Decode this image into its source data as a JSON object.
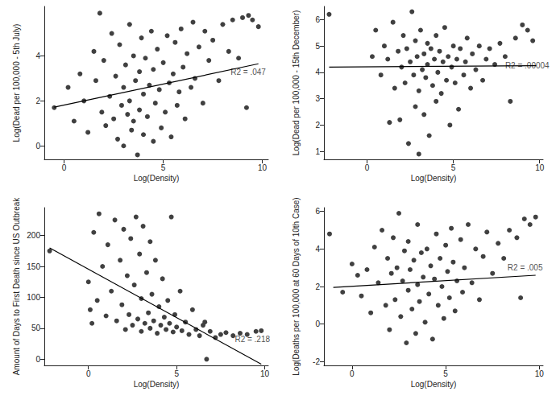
{
  "chart_data": [
    {
      "type": "scatter",
      "x_label": "Log(Density)",
      "y_label": "Log(Dead per 100,000 - 5th July)",
      "color": "#404040",
      "marker": "circle",
      "grid": false,
      "xlim": [
        -1,
        10.3
      ],
      "xticks": [
        0,
        5,
        10
      ],
      "ylim": [
        -0.6,
        6.2
      ],
      "yticks": [
        0,
        2,
        4
      ],
      "x": [
        -0.5,
        0.2,
        0.5,
        0.8,
        1.0,
        1.2,
        1.5,
        1.6,
        1.8,
        1.9,
        2.0,
        2.1,
        2.3,
        2.4,
        2.5,
        2.6,
        2.7,
        2.8,
        2.9,
        3.0,
        3.0,
        3.1,
        3.2,
        3.3,
        3.3,
        3.4,
        3.5,
        3.5,
        3.6,
        3.7,
        3.8,
        3.8,
        3.9,
        4.0,
        4.0,
        4.1,
        4.2,
        4.3,
        4.4,
        4.5,
        4.5,
        4.6,
        4.7,
        4.8,
        4.9,
        5.0,
        5.1,
        5.2,
        5.3,
        5.4,
        5.5,
        5.6,
        5.7,
        5.8,
        5.9,
        6.0,
        6.1,
        6.2,
        6.4,
        6.5,
        6.6,
        6.8,
        7.0,
        7.1,
        7.3,
        7.5,
        7.8,
        8.0,
        8.3,
        8.5,
        8.8,
        9.0,
        9.2,
        9.3,
        9.5,
        9.8
      ],
      "values": [
        1.7,
        2.6,
        1.1,
        3.2,
        2.0,
        0.6,
        4.2,
        2.9,
        5.9,
        1.5,
        3.8,
        0.9,
        2.2,
        5.0,
        1.2,
        3.1,
        0.3,
        4.5,
        1.8,
        2.6,
        0.0,
        3.6,
        1.4,
        5.4,
        2.0,
        0.7,
        4.0,
        1.1,
        2.9,
        -0.4,
        3.3,
        1.6,
        4.8,
        2.3,
        0.5,
        3.9,
        1.3,
        2.7,
        5.1,
        0.2,
        3.4,
        1.9,
        4.3,
        2.5,
        0.8,
        3.7,
        1.5,
        4.9,
        2.8,
        0.4,
        3.2,
        4.6,
        1.8,
        2.4,
        5.2,
        3.5,
        1.2,
        4.1,
        2.6,
        5.5,
        3.0,
        4.4,
        1.9,
        5.1,
        3.8,
        4.7,
        2.9,
        5.4,
        4.2,
        5.6,
        3.9,
        5.7,
        1.7,
        5.8,
        5.6,
        5.3
      ],
      "trend_line": {
        "x": [
          -0.5,
          9.8
        ],
        "values": [
          1.72,
          3.65
        ],
        "color": "#000000"
      },
      "annotations": [
        {
          "text": "R2 = .047",
          "x": 8.4,
          "y": 3.3
        }
      ]
    },
    {
      "type": "scatter",
      "x_label": "Log(Density)",
      "y_label": "Log(Dead per 100,000 - 15th December)",
      "color": "#404040",
      "marker": "circle",
      "grid": false,
      "xlim": [
        -2.5,
        10.2
      ],
      "xticks": [
        0,
        5,
        10
      ],
      "ylim": [
        0.7,
        6.5
      ],
      "yticks": [
        1,
        2,
        3,
        4,
        5,
        6
      ],
      "x": [
        -2.2,
        0.3,
        0.5,
        0.8,
        1.0,
        1.2,
        1.3,
        1.5,
        1.6,
        1.8,
        1.9,
        2.0,
        2.1,
        2.2,
        2.3,
        2.4,
        2.5,
        2.6,
        2.7,
        2.8,
        2.8,
        2.9,
        3.0,
        3.0,
        3.1,
        3.2,
        3.3,
        3.3,
        3.4,
        3.5,
        3.5,
        3.6,
        3.7,
        3.8,
        3.9,
        4.0,
        4.0,
        4.1,
        4.2,
        4.3,
        4.4,
        4.5,
        4.6,
        4.7,
        4.8,
        4.9,
        5.0,
        5.1,
        5.2,
        5.3,
        5.4,
        5.6,
        5.7,
        5.8,
        6.0,
        6.1,
        6.3,
        6.5,
        6.7,
        6.9,
        7.1,
        7.4,
        7.7,
        8.0,
        8.3,
        8.6,
        9.0,
        9.3,
        9.6
      ],
      "values": [
        6.2,
        4.6,
        5.6,
        3.9,
        5.0,
        4.5,
        2.1,
        5.9,
        3.4,
        4.8,
        2.2,
        4.2,
        5.4,
        3.6,
        4.9,
        1.3,
        4.4,
        6.3,
        3.9,
        5.2,
        2.7,
        4.6,
        3.3,
        0.9,
        5.6,
        4.1,
        4.7,
        2.4,
        3.8,
        5.1,
        4.3,
        1.6,
        4.9,
        3.5,
        4.5,
        5.4,
        2.9,
        4.0,
        4.8,
        3.2,
        4.4,
        5.7,
        3.7,
        4.6,
        2.0,
        4.2,
        5.0,
        3.6,
        4.5,
        2.6,
        4.9,
        3.9,
        4.4,
        5.3,
        3.4,
        4.7,
        4.1,
        5.0,
        3.7,
        4.5,
        4.9,
        4.3,
        5.1,
        4.6,
        2.9,
        5.3,
        5.8,
        5.6,
        5.2
      ],
      "trend_line": {
        "x": [
          -2.2,
          9.8
        ],
        "values": [
          4.2,
          4.25
        ],
        "color": "#000000"
      },
      "annotations": [
        {
          "text": "R2 = .00004",
          "x": 8.0,
          "y": 4.25
        }
      ]
    },
    {
      "type": "scatter",
      "x_label": "Log(Density)",
      "y_label": "Amount of Days to First Death since US Outbreak",
      "color": "#404040",
      "marker": "circle",
      "grid": false,
      "xlim": [
        -2.5,
        10.2
      ],
      "xticks": [
        0,
        5,
        10
      ],
      "ylim": [
        -10,
        245
      ],
      "yticks": [
        0,
        50,
        100,
        150,
        200
      ],
      "x": [
        -2.2,
        0,
        0.1,
        0.2,
        0.3,
        0.5,
        0.6,
        0.8,
        1.0,
        1.1,
        1.3,
        1.5,
        1.6,
        1.8,
        1.9,
        2.0,
        2.1,
        2.2,
        2.3,
        2.4,
        2.5,
        2.6,
        2.7,
        2.8,
        2.9,
        3.0,
        3.0,
        3.1,
        3.2,
        3.3,
        3.4,
        3.5,
        3.5,
        3.6,
        3.7,
        3.8,
        3.9,
        4.0,
        4.1,
        4.2,
        4.3,
        4.4,
        4.5,
        4.6,
        4.7,
        4.8,
        4.9,
        5.0,
        5.2,
        5.3,
        5.5,
        5.7,
        5.9,
        6.1,
        6.3,
        6.5,
        6.6,
        6.7,
        6.9,
        7.2,
        7.5,
        7.8,
        8.2,
        8.6,
        9.0,
        9.5,
        9.8
      ],
      "values": [
        175,
        125,
        80,
        58,
        205,
        95,
        235,
        150,
        70,
        185,
        110,
        225,
        62,
        160,
        88,
        210,
        48,
        135,
        72,
        195,
        55,
        120,
        230,
        65,
        170,
        45,
        98,
        215,
        58,
        140,
        75,
        190,
        50,
        105,
        62,
        160,
        42,
        85,
        55,
        130,
        68,
        48,
        95,
        58,
        230,
        44,
        72,
        52,
        110,
        46,
        60,
        40,
        80,
        48,
        38,
        55,
        60,
        0,
        45,
        35,
        40,
        43,
        38,
        42,
        40,
        45,
        46
      ],
      "trend_line": {
        "x": [
          -2.2,
          9.8
        ],
        "values": [
          180,
          -8
        ],
        "color": "#000000"
      },
      "annotations": [
        {
          "text": "R2 = .218",
          "x": 8.3,
          "y": 32
        }
      ]
    },
    {
      "type": "scatter",
      "x_label": "Log(Density)",
      "y_label": "Log(Deaths per 100,000 at 60 Days of 10th Case)",
      "color": "#404040",
      "marker": "circle",
      "grid": false,
      "xlim": [
        -1.5,
        10.2
      ],
      "xticks": [
        0,
        5,
        10
      ],
      "ylim": [
        -2.2,
        6.2
      ],
      "yticks": [
        -2,
        0,
        2,
        4,
        6
      ],
      "x": [
        -1.2,
        -0.5,
        0,
        0.3,
        0.5,
        0.8,
        1.0,
        1.2,
        1.4,
        1.6,
        1.8,
        1.9,
        2.0,
        2.1,
        2.2,
        2.3,
        2.4,
        2.5,
        2.6,
        2.7,
        2.8,
        2.9,
        3.0,
        3.0,
        3.1,
        3.2,
        3.3,
        3.4,
        3.5,
        3.5,
        3.6,
        3.7,
        3.8,
        3.9,
        4.0,
        4.1,
        4.2,
        4.3,
        4.4,
        4.5,
        4.6,
        4.7,
        4.8,
        4.9,
        5.0,
        5.1,
        5.2,
        5.3,
        5.4,
        5.5,
        5.6,
        5.8,
        5.9,
        6.0,
        6.2,
        6.4,
        6.6,
        6.8,
        7.0,
        7.2,
        7.5,
        7.8,
        8.1,
        8.4,
        8.8,
        9.0,
        9.2,
        9.5,
        9.8
      ],
      "values": [
        4.8,
        1.7,
        3.2,
        2.6,
        1.5,
        2.9,
        0.6,
        4.1,
        2.2,
        5.0,
        1.0,
        3.5,
        -0.3,
        2.7,
        4.6,
        1.3,
        3.0,
        5.9,
        0.4,
        2.3,
        3.9,
        -1.0,
        1.8,
        4.4,
        2.9,
        0.8,
        3.4,
        -0.5,
        2.1,
        5.3,
        1.2,
        3.8,
        2.5,
        0.1,
        4.0,
        1.6,
        3.1,
        -0.8,
        2.4,
        4.8,
        1.0,
        3.5,
        2.0,
        0.3,
        4.2,
        2.8,
        1.4,
        5.1,
        3.3,
        0.7,
        2.3,
        4.5,
        1.7,
        3.0,
        5.3,
        2.2,
        4.0,
        1.3,
        3.6,
        4.9,
        2.7,
        4.3,
        3.5,
        5.0,
        4.6,
        1.4,
        5.6,
        5.3,
        5.7
      ],
      "trend_line": {
        "x": [
          -1.0,
          9.8
        ],
        "values": [
          1.95,
          2.6
        ],
        "color": "#000000"
      },
      "annotations": [
        {
          "text": "R2 = .005",
          "x": 8.3,
          "y": 3.0
        }
      ]
    }
  ]
}
